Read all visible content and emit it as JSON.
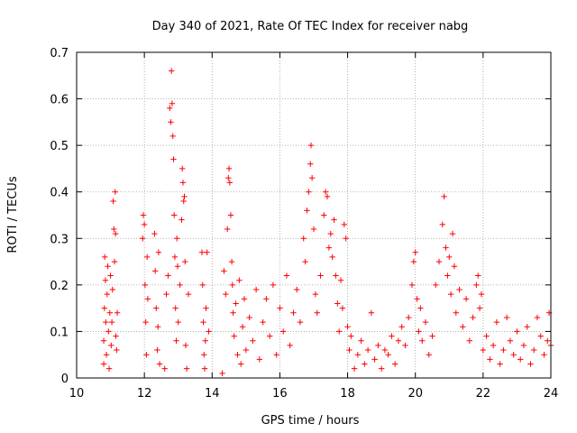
{
  "chart_data": {
    "type": "scatter",
    "title": "Day 340 of 2021, Rate Of TEC Index for receiver nabg",
    "xlabel": "GPS time / hours",
    "ylabel": "ROTI / TECUs",
    "xlim": [
      10,
      24
    ],
    "ylim": [
      0,
      0.7
    ],
    "x_ticks": [
      "10",
      "12",
      "14",
      "16",
      "18",
      "20",
      "22",
      "24"
    ],
    "y_ticks": [
      "0",
      "0.1",
      "0.2",
      "0.3",
      "0.4",
      "0.5",
      "0.6",
      "0.7"
    ],
    "grid": true,
    "marker": "+",
    "color": "#ff0000",
    "series": [
      {
        "points": [
          [
            10.8,
            0.03
          ],
          [
            10.8,
            0.08
          ],
          [
            10.82,
            0.15
          ],
          [
            10.83,
            0.26
          ],
          [
            10.85,
            0.21
          ],
          [
            10.86,
            0.12
          ],
          [
            10.88,
            0.05
          ],
          [
            10.9,
            0.18
          ],
          [
            10.92,
            0.24
          ],
          [
            10.94,
            0.1
          ],
          [
            10.96,
            0.02
          ],
          [
            10.98,
            0.14
          ],
          [
            11.0,
            0.22
          ],
          [
            11.02,
            0.07
          ],
          [
            11.04,
            0.12
          ],
          [
            11.06,
            0.19
          ],
          [
            11.08,
            0.38
          ],
          [
            11.1,
            0.32
          ],
          [
            11.12,
            0.25
          ],
          [
            11.14,
            0.4
          ],
          [
            11.15,
            0.31
          ],
          [
            11.16,
            0.09
          ],
          [
            11.18,
            0.06
          ],
          [
            11.2,
            0.14
          ],
          [
            11.95,
            0.3
          ],
          [
            11.97,
            0.35
          ],
          [
            12.0,
            0.33
          ],
          [
            12.02,
            0.2
          ],
          [
            12.04,
            0.12
          ],
          [
            12.06,
            0.05
          ],
          [
            12.08,
            0.26
          ],
          [
            12.1,
            0.17
          ],
          [
            12.3,
            0.31
          ],
          [
            12.32,
            0.23
          ],
          [
            12.35,
            0.15
          ],
          [
            12.38,
            0.06
          ],
          [
            12.4,
            0.11
          ],
          [
            12.42,
            0.27
          ],
          [
            12.45,
            0.03
          ],
          [
            12.6,
            0.02
          ],
          [
            12.65,
            0.18
          ],
          [
            12.7,
            0.22
          ],
          [
            12.75,
            0.58
          ],
          [
            12.78,
            0.55
          ],
          [
            12.8,
            0.66
          ],
          [
            12.82,
            0.59
          ],
          [
            12.84,
            0.52
          ],
          [
            12.86,
            0.47
          ],
          [
            12.88,
            0.35
          ],
          [
            12.9,
            0.26
          ],
          [
            12.92,
            0.15
          ],
          [
            12.94,
            0.08
          ],
          [
            12.96,
            0.3
          ],
          [
            12.98,
            0.24
          ],
          [
            13.0,
            0.12
          ],
          [
            13.05,
            0.2
          ],
          [
            13.1,
            0.34
          ],
          [
            13.12,
            0.45
          ],
          [
            13.14,
            0.42
          ],
          [
            13.16,
            0.38
          ],
          [
            13.18,
            0.39
          ],
          [
            13.2,
            0.25
          ],
          [
            13.22,
            0.07
          ],
          [
            13.25,
            0.02
          ],
          [
            13.3,
            0.18
          ],
          [
            13.7,
            0.27
          ],
          [
            13.72,
            0.2
          ],
          [
            13.74,
            0.12
          ],
          [
            13.76,
            0.05
          ],
          [
            13.78,
            0.02
          ],
          [
            13.8,
            0.08
          ],
          [
            13.82,
            0.15
          ],
          [
            13.85,
            0.27
          ],
          [
            13.9,
            0.1
          ],
          [
            14.3,
            0.01
          ],
          [
            14.35,
            0.23
          ],
          [
            14.4,
            0.18
          ],
          [
            14.45,
            0.32
          ],
          [
            14.48,
            0.43
          ],
          [
            14.5,
            0.45
          ],
          [
            14.52,
            0.42
          ],
          [
            14.55,
            0.35
          ],
          [
            14.58,
            0.25
          ],
          [
            14.6,
            0.2
          ],
          [
            14.62,
            0.14
          ],
          [
            14.65,
            0.09
          ],
          [
            14.7,
            0.16
          ],
          [
            14.75,
            0.05
          ],
          [
            14.8,
            0.21
          ],
          [
            14.85,
            0.03
          ],
          [
            14.9,
            0.11
          ],
          [
            14.95,
            0.17
          ],
          [
            15.0,
            0.06
          ],
          [
            15.1,
            0.13
          ],
          [
            15.2,
            0.08
          ],
          [
            15.3,
            0.19
          ],
          [
            15.4,
            0.04
          ],
          [
            15.5,
            0.12
          ],
          [
            15.6,
            0.17
          ],
          [
            15.7,
            0.09
          ],
          [
            15.8,
            0.2
          ],
          [
            15.9,
            0.05
          ],
          [
            16.0,
            0.15
          ],
          [
            16.1,
            0.1
          ],
          [
            16.2,
            0.22
          ],
          [
            16.3,
            0.07
          ],
          [
            16.4,
            0.14
          ],
          [
            16.5,
            0.19
          ],
          [
            16.6,
            0.12
          ],
          [
            16.7,
            0.3
          ],
          [
            16.75,
            0.25
          ],
          [
            16.8,
            0.36
          ],
          [
            16.85,
            0.4
          ],
          [
            16.9,
            0.46
          ],
          [
            16.92,
            0.5
          ],
          [
            16.95,
            0.43
          ],
          [
            17.0,
            0.32
          ],
          [
            17.05,
            0.18
          ],
          [
            17.1,
            0.14
          ],
          [
            17.2,
            0.22
          ],
          [
            17.3,
            0.35
          ],
          [
            17.35,
            0.4
          ],
          [
            17.4,
            0.39
          ],
          [
            17.45,
            0.28
          ],
          [
            17.5,
            0.31
          ],
          [
            17.55,
            0.26
          ],
          [
            17.6,
            0.34
          ],
          [
            17.65,
            0.22
          ],
          [
            17.7,
            0.16
          ],
          [
            17.75,
            0.1
          ],
          [
            17.8,
            0.21
          ],
          [
            17.85,
            0.15
          ],
          [
            17.9,
            0.33
          ],
          [
            17.95,
            0.3
          ],
          [
            18.0,
            0.11
          ],
          [
            18.05,
            0.06
          ],
          [
            18.1,
            0.09
          ],
          [
            18.2,
            0.02
          ],
          [
            18.3,
            0.05
          ],
          [
            18.4,
            0.08
          ],
          [
            18.5,
            0.03
          ],
          [
            18.6,
            0.06
          ],
          [
            18.7,
            0.14
          ],
          [
            18.8,
            0.04
          ],
          [
            18.9,
            0.07
          ],
          [
            19.0,
            0.02
          ],
          [
            19.1,
            0.06
          ],
          [
            19.2,
            0.05
          ],
          [
            19.3,
            0.09
          ],
          [
            19.4,
            0.03
          ],
          [
            19.5,
            0.08
          ],
          [
            19.6,
            0.11
          ],
          [
            19.7,
            0.07
          ],
          [
            19.8,
            0.13
          ],
          [
            19.9,
            0.2
          ],
          [
            19.95,
            0.25
          ],
          [
            20.0,
            0.27
          ],
          [
            20.05,
            0.17
          ],
          [
            20.1,
            0.1
          ],
          [
            20.15,
            0.15
          ],
          [
            20.2,
            0.08
          ],
          [
            20.3,
            0.12
          ],
          [
            20.4,
            0.05
          ],
          [
            20.5,
            0.09
          ],
          [
            20.6,
            0.2
          ],
          [
            20.7,
            0.25
          ],
          [
            20.8,
            0.33
          ],
          [
            20.85,
            0.39
          ],
          [
            20.9,
            0.28
          ],
          [
            20.95,
            0.22
          ],
          [
            21.0,
            0.26
          ],
          [
            21.05,
            0.18
          ],
          [
            21.1,
            0.31
          ],
          [
            21.15,
            0.24
          ],
          [
            21.2,
            0.14
          ],
          [
            21.3,
            0.19
          ],
          [
            21.4,
            0.11
          ],
          [
            21.5,
            0.17
          ],
          [
            21.6,
            0.08
          ],
          [
            21.7,
            0.13
          ],
          [
            21.8,
            0.2
          ],
          [
            21.85,
            0.22
          ],
          [
            21.9,
            0.15
          ],
          [
            21.95,
            0.18
          ],
          [
            22.0,
            0.06
          ],
          [
            22.1,
            0.09
          ],
          [
            22.2,
            0.04
          ],
          [
            22.3,
            0.07
          ],
          [
            22.4,
            0.12
          ],
          [
            22.5,
            0.03
          ],
          [
            22.6,
            0.06
          ],
          [
            22.7,
            0.13
          ],
          [
            22.8,
            0.08
          ],
          [
            22.9,
            0.05
          ],
          [
            23.0,
            0.1
          ],
          [
            23.1,
            0.04
          ],
          [
            23.2,
            0.07
          ],
          [
            23.3,
            0.11
          ],
          [
            23.4,
            0.03
          ],
          [
            23.5,
            0.06
          ],
          [
            23.6,
            0.13
          ],
          [
            23.7,
            0.09
          ],
          [
            23.8,
            0.05
          ],
          [
            23.9,
            0.08
          ],
          [
            23.95,
            0.14
          ],
          [
            24.0,
            0.07
          ]
        ]
      }
    ]
  }
}
